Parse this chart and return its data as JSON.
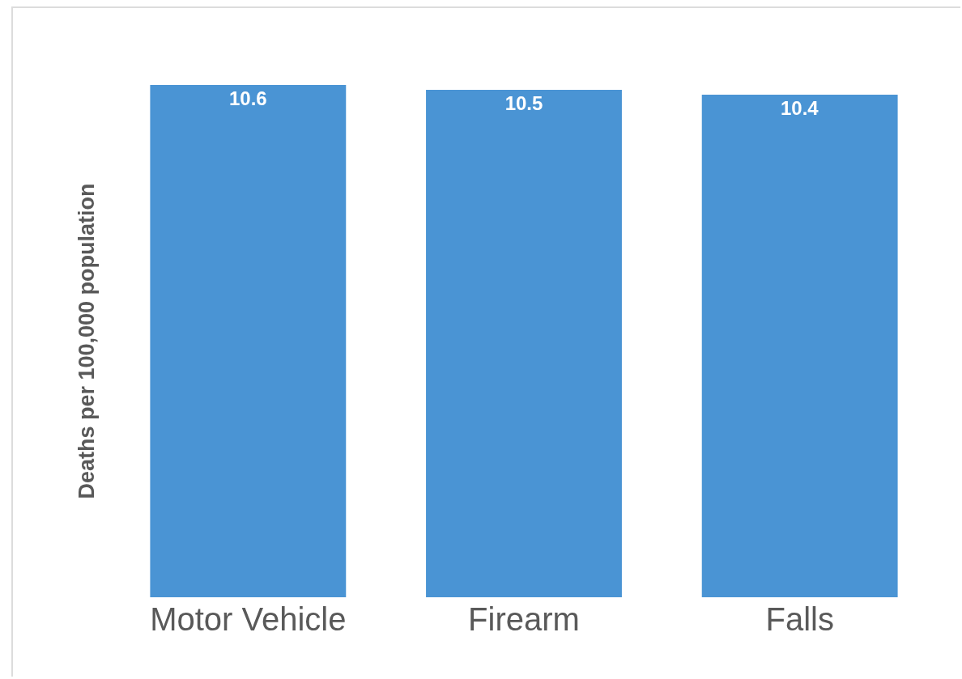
{
  "chart_data": {
    "type": "bar",
    "ylabel": "Deaths per 100,000 population",
    "categories": [
      "Motor Vehicle",
      "Firearm",
      "Falls"
    ],
    "values": [
      10.6,
      10.5,
      10.4
    ],
    "color": "#4a94d4",
    "data_labels": true
  }
}
